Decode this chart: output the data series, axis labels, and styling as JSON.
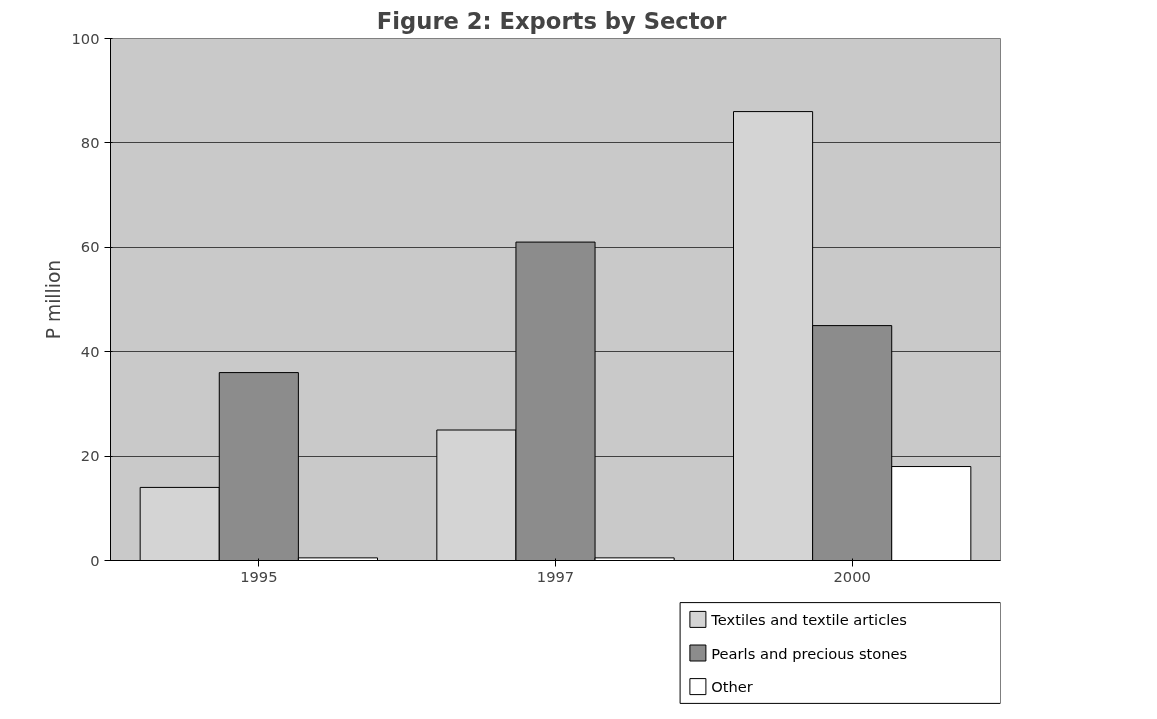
{
  "chart_data": {
    "type": "bar",
    "title": "Figure 2: Exports by  Sector",
    "ylabel": "P million",
    "categories": [
      "1995",
      "1997",
      "2000"
    ],
    "series": [
      {
        "name": "Textiles and textile articles",
        "color": "#d4d4d4",
        "values": [
          14,
          25,
          86
        ]
      },
      {
        "name": "Pearls and precious stones",
        "color": "#8c8c8c",
        "values": [
          36,
          61,
          45
        ]
      },
      {
        "name": "Other",
        "color": "#ffffff",
        "values": [
          0.5,
          0.5,
          18
        ]
      }
    ],
    "ylim": [
      0,
      100
    ],
    "yticks": [
      0,
      20,
      40,
      60,
      80,
      100
    ],
    "grid": "y",
    "legend": "bottom right"
  }
}
